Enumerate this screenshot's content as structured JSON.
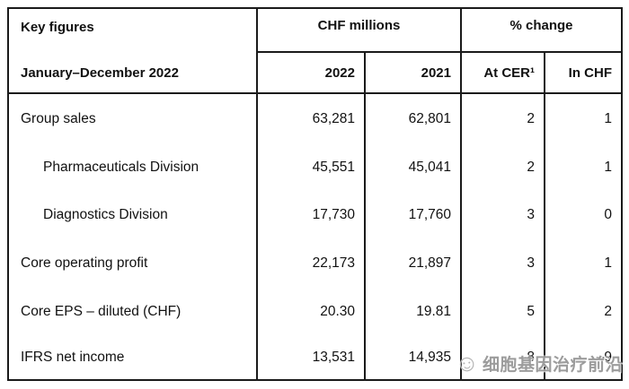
{
  "table": {
    "header": {
      "key_figures": "Key figures",
      "period": "January–December 2022",
      "group_chf_millions": "CHF millions",
      "group_pct_change": "% change",
      "col_2022": "2022",
      "col_2021": "2021",
      "col_at_cer": "At CER¹",
      "col_in_chf": "In CHF"
    },
    "rows": [
      {
        "label": "Group sales",
        "indent": false,
        "v2022": "63,281",
        "v2021": "62,801",
        "cer": "2",
        "chf": "1"
      },
      {
        "label": "Pharmaceuticals Division",
        "indent": true,
        "v2022": "45,551",
        "v2021": "45,041",
        "cer": "2",
        "chf": "1"
      },
      {
        "label": "Diagnostics Division",
        "indent": true,
        "v2022": "17,730",
        "v2021": "17,760",
        "cer": "3",
        "chf": "0"
      },
      {
        "label": "Core operating profit",
        "indent": false,
        "v2022": "22,173",
        "v2021": "21,897",
        "cer": "3",
        "chf": "1"
      },
      {
        "label": "Core EPS – diluted (CHF)",
        "indent": false,
        "v2022": "20.30",
        "v2021": "19.81",
        "cer": "5",
        "chf": "2"
      },
      {
        "label": "IFRS net income",
        "indent": false,
        "v2022": "13,531",
        "v2021": "14,935",
        "cer": "–8",
        "chf": "–9"
      }
    ]
  },
  "watermark": {
    "text": "细胞基因治疗前沿",
    "icon_glyph": "☺"
  },
  "colors": {
    "border": "#1a1a1a",
    "text": "#111111",
    "background": "#ffffff",
    "watermark_gray": "#8e8e8e"
  }
}
